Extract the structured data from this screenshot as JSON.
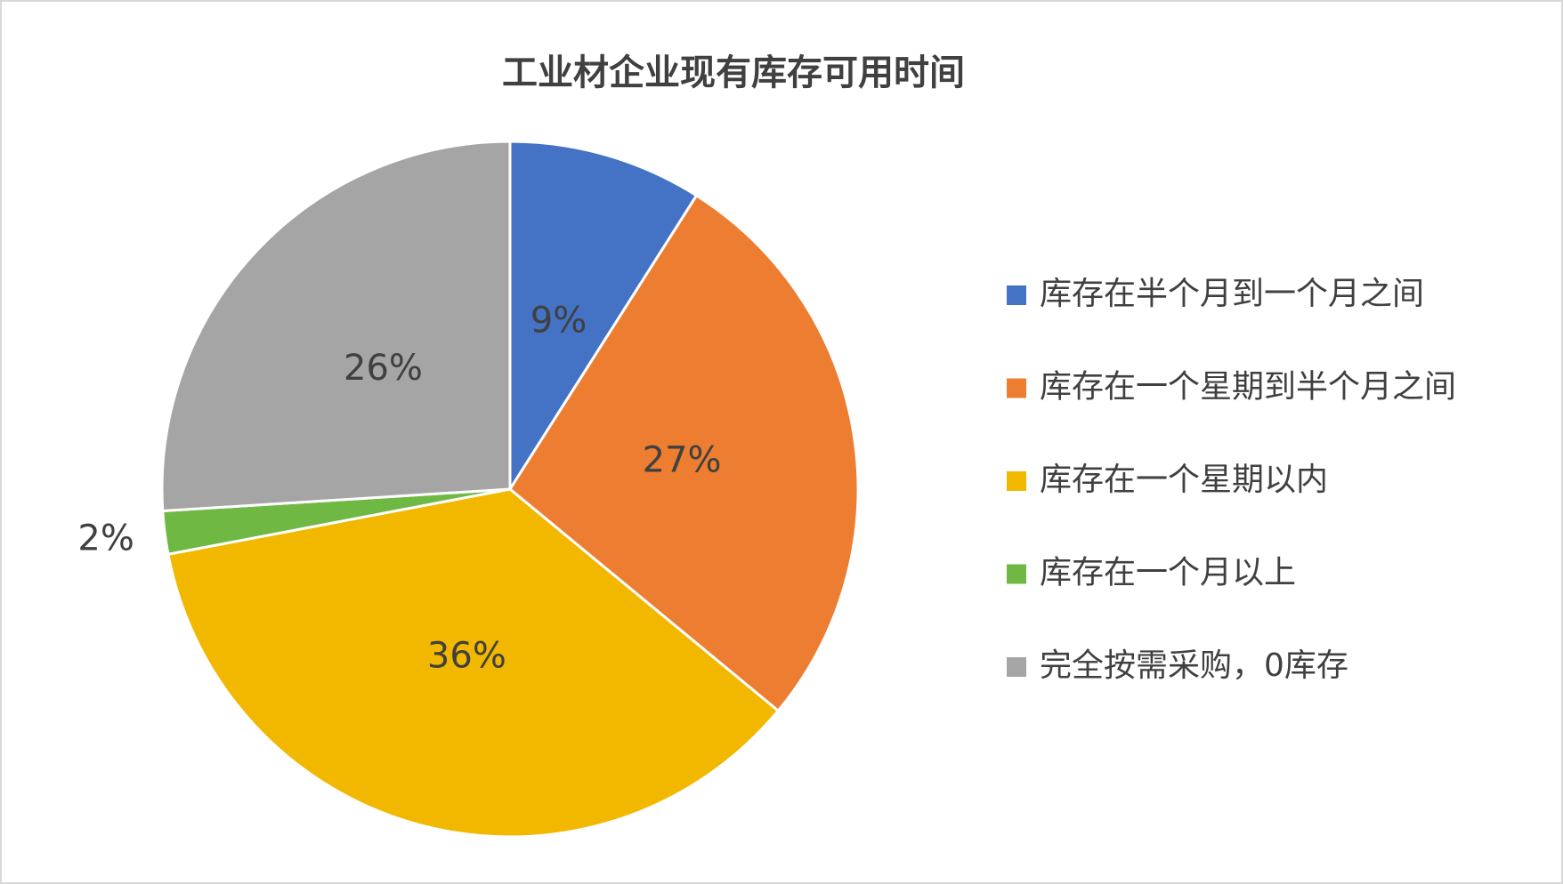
{
  "chart_data": {
    "type": "pie",
    "title": "工业材企业现有库存可用时间",
    "categories": [
      "库存在半个月到一个月之间",
      "库存在一个星期到半个月之间",
      "库存在一个星期以内",
      "库存在一个月以上",
      "完全按需采购，0库存"
    ],
    "values": [
      9,
      27,
      36,
      2,
      26
    ],
    "value_labels": [
      "9%",
      "27%",
      "36%",
      "2%",
      "26%"
    ],
    "colors": [
      "#4472c4",
      "#ed7d31",
      "#f2b800",
      "#70b844",
      "#a5a5a5"
    ],
    "legend": "right"
  }
}
